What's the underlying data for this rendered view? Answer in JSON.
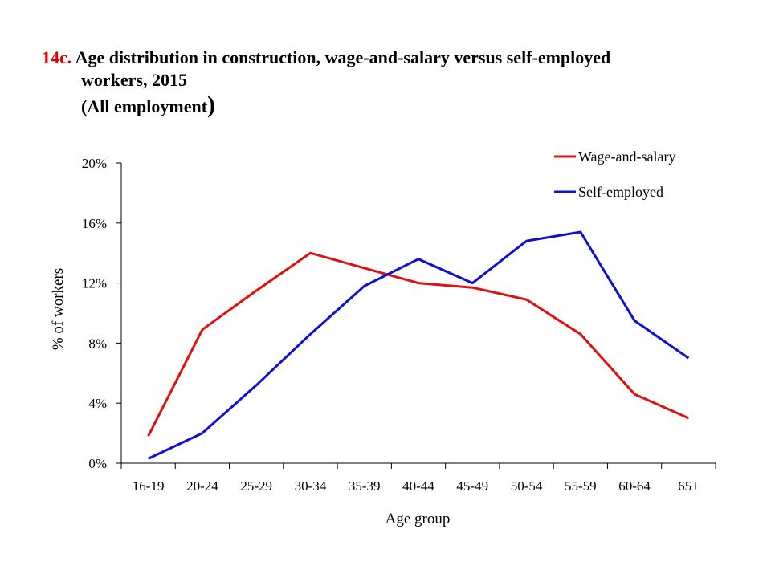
{
  "title": {
    "number": "14c.",
    "line1": "Age distribution in construction, wage-and-salary versus self-employed",
    "line2": "workers, 2015",
    "line3": "(All employment",
    "line3_close": ")"
  },
  "chart_data": {
    "type": "line",
    "xlabel": "Age group",
    "ylabel": "% of workers",
    "categories": [
      "16-19",
      "20-24",
      "25-29",
      "30-34",
      "35-39",
      "40-44",
      "45-49",
      "50-54",
      "55-59",
      "60-64",
      "65+"
    ],
    "ylim": [
      0,
      20
    ],
    "yticks": [
      0,
      4,
      8,
      12,
      16,
      20
    ],
    "ytick_labels": [
      "0%",
      "4%",
      "8%",
      "12%",
      "16%",
      "20%"
    ],
    "grid": false,
    "legend_position": "top-right",
    "series": [
      {
        "name": "Wage-and-salary",
        "color": "#e01010",
        "values": [
          1.8,
          8.9,
          11.5,
          14.0,
          13.0,
          12.0,
          11.7,
          10.9,
          8.6,
          4.6,
          3.0
        ]
      },
      {
        "name": "Self-employed",
        "color": "#1010d0",
        "values": [
          0.3,
          2.0,
          5.2,
          8.6,
          11.8,
          13.6,
          12.0,
          14.8,
          15.4,
          9.5,
          7.0
        ]
      }
    ]
  }
}
